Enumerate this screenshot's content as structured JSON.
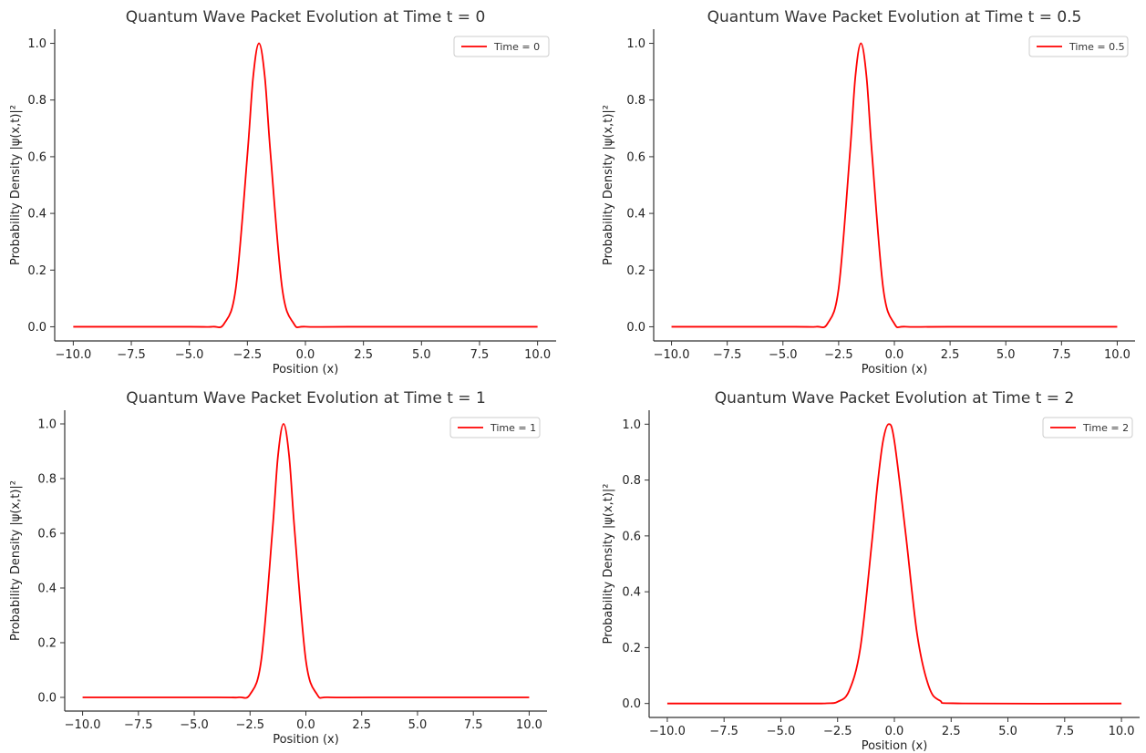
{
  "chart_data": [
    {
      "type": "line",
      "title": "Quantum Wave Packet Evolution at Time t = 0",
      "xlabel": "Position (x)",
      "ylabel": "Probability Density |ψ(x,t)|²",
      "xlim": [
        -10.8,
        10.8
      ],
      "ylim": [
        -0.05,
        1.05
      ],
      "x_ticks": [
        -10,
        -7.5,
        -5,
        -2.5,
        0,
        2.5,
        5,
        7.5,
        10
      ],
      "x_tick_labels": [
        "−10.0",
        "−7.5",
        "−5.0",
        "−2.5",
        "0.0",
        "2.5",
        "5.0",
        "7.5",
        "10.0"
      ],
      "y_ticks": [
        0,
        0.2,
        0.4,
        0.6,
        0.8,
        1.0
      ],
      "y_tick_labels": [
        "0.0",
        "0.2",
        "0.4",
        "0.6",
        "0.8",
        "1.0"
      ],
      "grid": false,
      "legend_position": "top-right",
      "series": [
        {
          "name": "Time = 0",
          "color": "#ff0000",
          "x": [
            -10,
            -5,
            -4,
            -3.5,
            -3,
            -2.5,
            -2.25,
            -2,
            -1.75,
            -1.5,
            -1,
            -0.5,
            0,
            2,
            10
          ],
          "y": [
            0,
            0,
            0.0003,
            0.0111,
            0.1353,
            0.6065,
            0.8825,
            1.0,
            0.8825,
            0.6065,
            0.1353,
            0.0111,
            0.0003,
            0,
            0
          ]
        }
      ]
    },
    {
      "type": "line",
      "title": "Quantum Wave Packet Evolution at Time t = 0.5",
      "xlabel": "Position (x)",
      "ylabel": "Probability Density |ψ(x,t)|²",
      "xlim": [
        -10.8,
        10.8
      ],
      "ylim": [
        -0.05,
        1.05
      ],
      "x_ticks": [
        -10,
        -7.5,
        -5,
        -2.5,
        0,
        2.5,
        5,
        7.5,
        10
      ],
      "x_tick_labels": [
        "−10.0",
        "−7.5",
        "−5.0",
        "−2.5",
        "0.0",
        "2.5",
        "5.0",
        "7.5",
        "10.0"
      ],
      "y_ticks": [
        0,
        0.2,
        0.4,
        0.6,
        0.8,
        1.0
      ],
      "y_tick_labels": [
        "0.0",
        "0.2",
        "0.4",
        "0.6",
        "0.8",
        "1.0"
      ],
      "grid": false,
      "legend_position": "top-right",
      "series": [
        {
          "name": "Time = 0.5",
          "color": "#ff0000",
          "x": [
            -10,
            -4.5,
            -3.5,
            -3,
            -2.5,
            -2,
            -1.75,
            -1.5,
            -1.25,
            -1,
            -0.5,
            0,
            0.5,
            2.5,
            10
          ],
          "y": [
            0,
            0,
            0.0003,
            0.0111,
            0.1353,
            0.6065,
            0.8825,
            1.0,
            0.8825,
            0.6065,
            0.1353,
            0.0111,
            0.0003,
            0,
            0
          ]
        }
      ]
    },
    {
      "type": "line",
      "title": "Quantum Wave Packet Evolution at Time t = 1",
      "xlabel": "Position (x)",
      "ylabel": "Probability Density |ψ(x,t)|²",
      "xlim": [
        -10.8,
        10.8
      ],
      "ylim": [
        -0.05,
        1.05
      ],
      "x_ticks": [
        -10,
        -7.5,
        -5,
        -2.5,
        0,
        2.5,
        5,
        7.5,
        10
      ],
      "x_tick_labels": [
        "−10.0",
        "−7.5",
        "−5.0",
        "−2.5",
        "0.0",
        "2.5",
        "5.0",
        "7.5",
        "10.0"
      ],
      "y_ticks": [
        0,
        0.2,
        0.4,
        0.6,
        0.8,
        1.0
      ],
      "y_tick_labels": [
        "0.0",
        "0.2",
        "0.4",
        "0.6",
        "0.8",
        "1.0"
      ],
      "grid": false,
      "legend_position": "top-right",
      "series": [
        {
          "name": "Time = 1",
          "color": "#ff0000",
          "x": [
            -10,
            -4,
            -3,
            -2.5,
            -2,
            -1.5,
            -1.25,
            -1,
            -0.75,
            -0.5,
            0,
            0.5,
            1,
            3,
            10
          ],
          "y": [
            0,
            0,
            0.0003,
            0.0111,
            0.1353,
            0.6065,
            0.8825,
            1.0,
            0.8825,
            0.6065,
            0.1353,
            0.0111,
            0.0003,
            0,
            0
          ]
        }
      ]
    },
    {
      "type": "line",
      "title": "Quantum Wave Packet Evolution at Time t = 2",
      "xlabel": "Position (x)",
      "ylabel": "Probability Density |ψ(x,t)|²",
      "xlim": [
        -10.8,
        10.8
      ],
      "ylim": [
        -0.05,
        1.05
      ],
      "x_ticks": [
        -10,
        -7.5,
        -5,
        -2.5,
        0,
        2.5,
        5,
        7.5,
        10
      ],
      "x_tick_labels": [
        "−10.0",
        "−7.5",
        "−5.0",
        "−2.5",
        "0.0",
        "2.5",
        "5.0",
        "7.5",
        "10.0"
      ],
      "y_ticks": [
        0,
        0.2,
        0.4,
        0.6,
        0.8,
        1.0
      ],
      "y_tick_labels": [
        "0.0",
        "0.2",
        "0.4",
        "0.6",
        "0.8",
        "1.0"
      ],
      "grid": false,
      "legend_position": "top-right",
      "series": [
        {
          "name": "Time = 2",
          "color": "#ff0000",
          "x": [
            -10,
            -4,
            -3,
            -2.5,
            -2,
            -1.5,
            -1,
            -0.75,
            -0.5,
            -0.25,
            0,
            0.5,
            1,
            1.5,
            2,
            3,
            10
          ],
          "y": [
            0,
            0,
            0.0006,
            0.0062,
            0.0439,
            0.1979,
            0.5698,
            0.7788,
            0.9394,
            1.0,
            0.9394,
            0.6065,
            0.2494,
            0.0651,
            0.0105,
            0.0002,
            0
          ]
        }
      ]
    }
  ]
}
